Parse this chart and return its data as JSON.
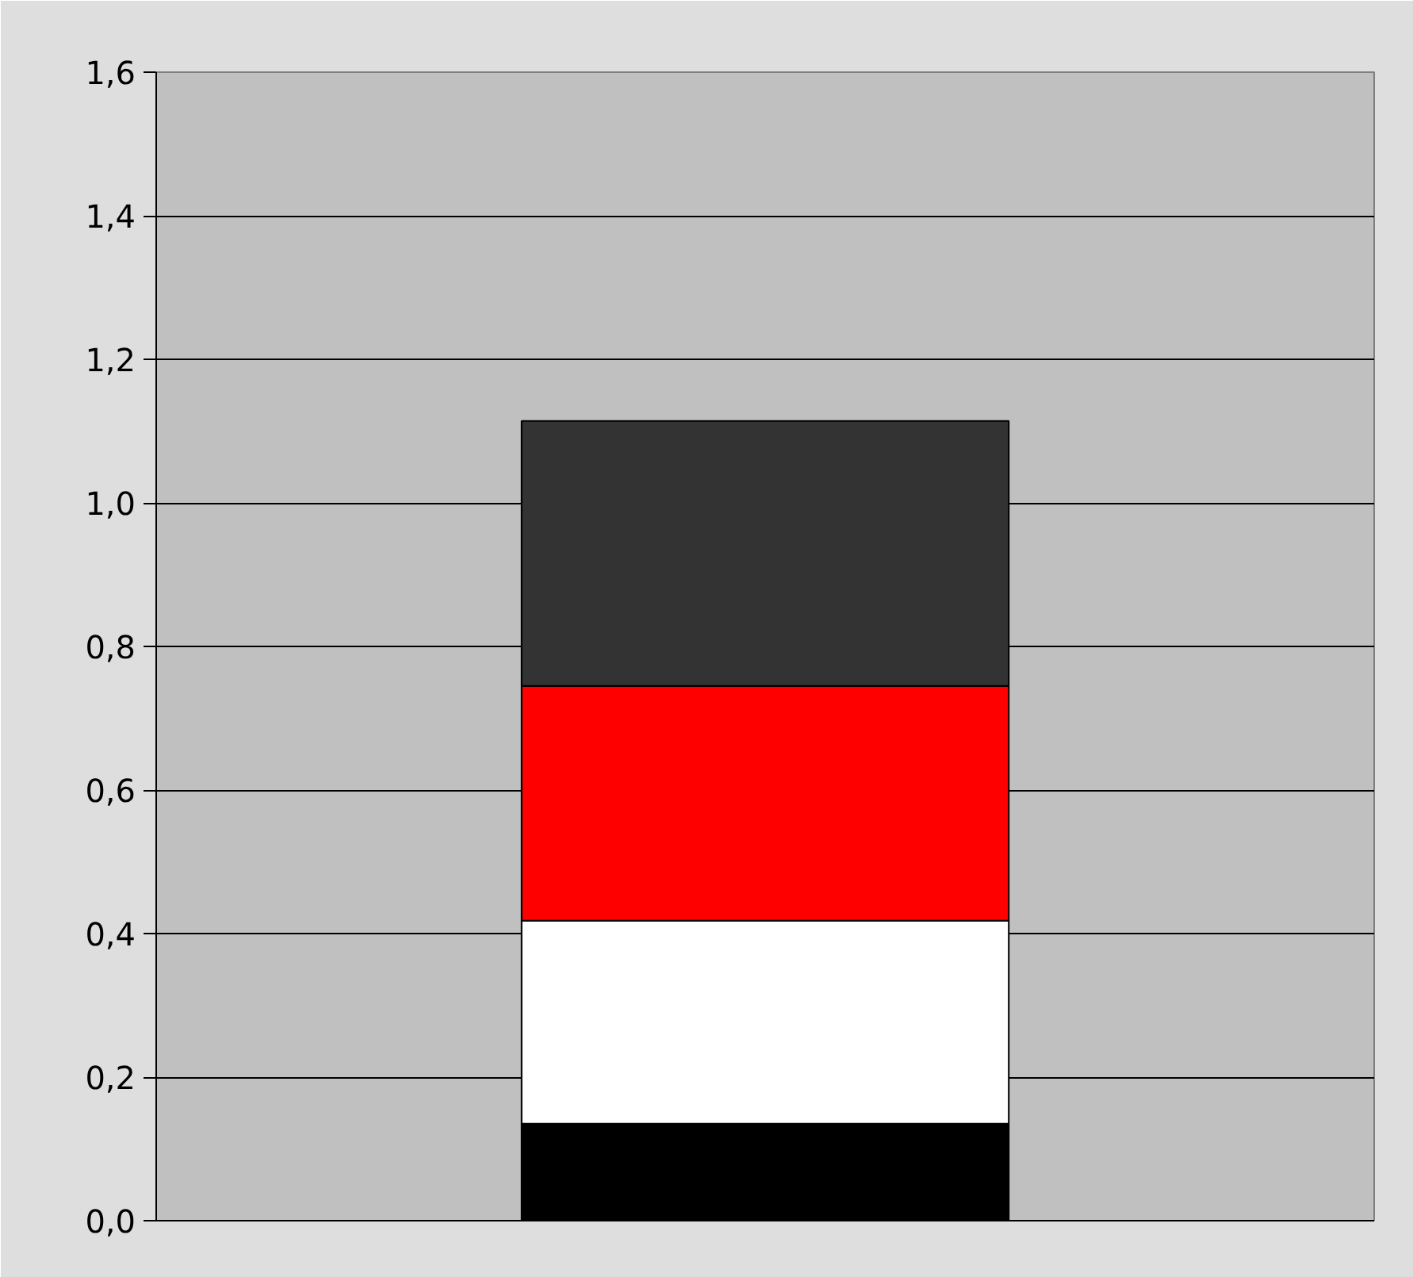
{
  "chart_data": {
    "type": "bar",
    "stacked": true,
    "categories": [
      null
    ],
    "series": [
      {
        "color": "#000000",
        "values": [
          0.135
        ]
      },
      {
        "color": "#ffffff",
        "values": [
          0.283
        ]
      },
      {
        "color": "#ff0000",
        "values": [
          0.327
        ]
      },
      {
        "color": "#333333",
        "values": [
          0.369
        ]
      }
    ],
    "ylim": [
      0,
      1.6
    ],
    "yticks": [
      {
        "value": 0,
        "label": "0,0"
      },
      {
        "value": 0.2,
        "label": "0,2"
      },
      {
        "value": 0.4,
        "label": "0,4"
      },
      {
        "value": 0.6,
        "label": "0,6"
      },
      {
        "value": 0.8,
        "label": "0,8"
      },
      {
        "value": 1.0,
        "label": "1,0"
      },
      {
        "value": 1.2,
        "label": "1,2"
      },
      {
        "value": 1.4,
        "label": "1,4"
      },
      {
        "value": 1.6,
        "label": "1,6"
      }
    ],
    "grid": "y",
    "tick_labels": "y"
  }
}
